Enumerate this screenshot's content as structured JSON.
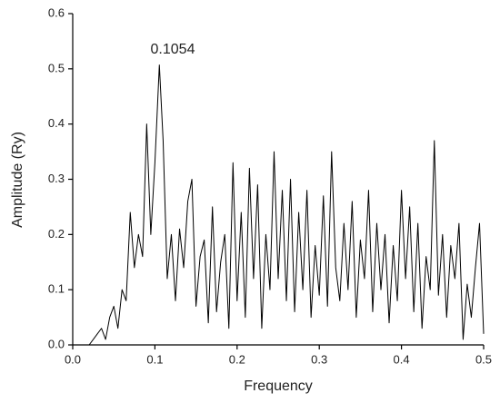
{
  "chart_data": {
    "type": "line",
    "xlabel": "Frequency",
    "ylabel": "Amplitude (Ry)",
    "annotation": "0.1054",
    "x": [
      0,
      0.005,
      0.01,
      0.015,
      0.02,
      0.025,
      0.03,
      0.035,
      0.04,
      0.045,
      0.05,
      0.055,
      0.06,
      0.065,
      0.07,
      0.075,
      0.08,
      0.085,
      0.09,
      0.095,
      0.1,
      0.1054,
      0.11,
      0.115,
      0.12,
      0.125,
      0.13,
      0.135,
      0.14,
      0.145,
      0.15,
      0.155,
      0.16,
      0.165,
      0.17,
      0.175,
      0.18,
      0.185,
      0.19,
      0.195,
      0.2,
      0.205,
      0.21,
      0.215,
      0.22,
      0.225,
      0.23,
      0.235,
      0.24,
      0.245,
      0.25,
      0.255,
      0.26,
      0.265,
      0.27,
      0.275,
      0.28,
      0.285,
      0.29,
      0.295,
      0.3,
      0.305,
      0.31,
      0.315,
      0.32,
      0.325,
      0.33,
      0.335,
      0.34,
      0.345,
      0.35,
      0.355,
      0.36,
      0.365,
      0.37,
      0.375,
      0.38,
      0.385,
      0.39,
      0.395,
      0.4,
      0.405,
      0.41,
      0.415,
      0.42,
      0.425,
      0.43,
      0.435,
      0.44,
      0.445,
      0.45,
      0.455,
      0.46,
      0.465,
      0.47,
      0.475,
      0.48,
      0.485,
      0.49,
      0.495,
      0.5
    ],
    "series": [
      {
        "color": "#000000",
        "values": [
          0,
          0,
          0,
          0,
          0,
          0.01,
          0.02,
          0.03,
          0.01,
          0.05,
          0.07,
          0.03,
          0.1,
          0.08,
          0.24,
          0.14,
          0.2,
          0.16,
          0.4,
          0.2,
          0.33,
          0.507,
          0.37,
          0.12,
          0.2,
          0.08,
          0.21,
          0.14,
          0.26,
          0.3,
          0.07,
          0.16,
          0.19,
          0.04,
          0.25,
          0.06,
          0.15,
          0.2,
          0.03,
          0.33,
          0.08,
          0.24,
          0.05,
          0.32,
          0.12,
          0.29,
          0.03,
          0.2,
          0.1,
          0.35,
          0.12,
          0.28,
          0.08,
          0.3,
          0.06,
          0.24,
          0.1,
          0.28,
          0.05,
          0.18,
          0.09,
          0.27,
          0.07,
          0.35,
          0.14,
          0.08,
          0.22,
          0.1,
          0.26,
          0.05,
          0.19,
          0.12,
          0.28,
          0.06,
          0.22,
          0.1,
          0.2,
          0.04,
          0.18,
          0.08,
          0.28,
          0.12,
          0.25,
          0.06,
          0.22,
          0.03,
          0.16,
          0.1,
          0.37,
          0.09,
          0.2,
          0.05,
          0.18,
          0.12,
          0.22,
          0.01,
          0.11,
          0.05,
          0.14,
          0.22,
          0.02
        ]
      }
    ],
    "xlim": [
      0,
      0.5
    ],
    "ylim": [
      0,
      0.6
    ],
    "xticks": [
      {
        "value": 0,
        "label": "0.0"
      },
      0.1,
      0.2,
      0.3,
      0.4,
      0.5
    ],
    "yticks": [
      {
        "value": 0,
        "label": "0.0"
      },
      0.1,
      0.2,
      0.3,
      0.4,
      0.5,
      0.6
    ]
  }
}
